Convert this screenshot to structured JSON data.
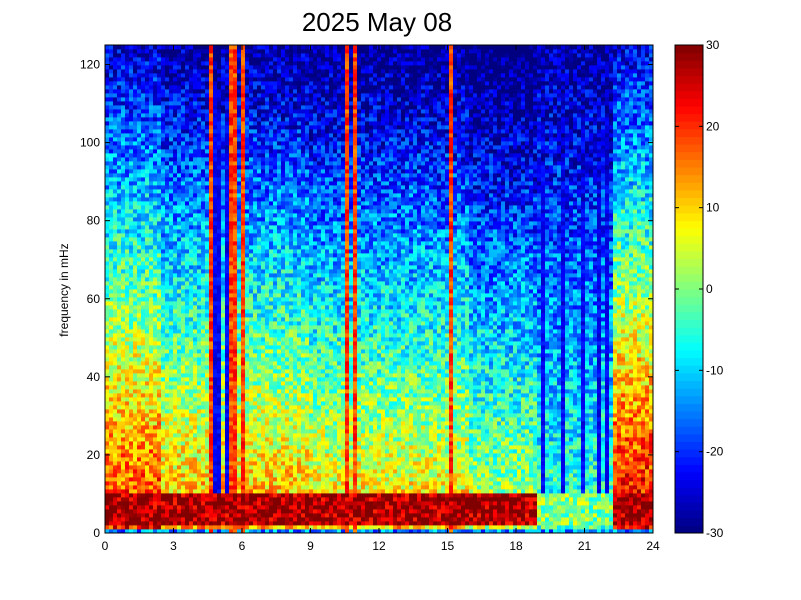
{
  "chart_data": {
    "type": "heatmap",
    "title": "2025 May 08",
    "xlabel": "",
    "ylabel": "frequency in mHz",
    "xlim": [
      0,
      24
    ],
    "ylim": [
      0,
      125
    ],
    "x_ticks": [
      0,
      3,
      6,
      9,
      12,
      15,
      18,
      21,
      24
    ],
    "x_tick_labels": [
      "0",
      "3",
      "6",
      "9",
      "12",
      "15",
      "18",
      "21",
      "24"
    ],
    "y_ticks": [
      0,
      20,
      40,
      60,
      80,
      100,
      120
    ],
    "y_tick_labels": [
      "0",
      "20",
      "40",
      "60",
      "80",
      "100",
      "120"
    ],
    "colorbar": {
      "range": [
        -30,
        30
      ],
      "ticks": [
        -30,
        -20,
        -10,
        0,
        10,
        20,
        30
      ],
      "tick_labels": [
        "-30",
        "-20",
        "-10",
        "0",
        "10",
        "20",
        "30"
      ],
      "colormap": "jet"
    },
    "grid": false,
    "bright_vertical_lines_hours": [
      4.6,
      5.6,
      6.0,
      10.6,
      10.9,
      15.1
    ],
    "dark_vertical_lines_hours": [
      4.9,
      5.3,
      19.2,
      20.1,
      21.0,
      21.7,
      22.0
    ],
    "strong_event_start_hour": 22.2,
    "low_freq_band_mHz": [
      2,
      10
    ]
  }
}
